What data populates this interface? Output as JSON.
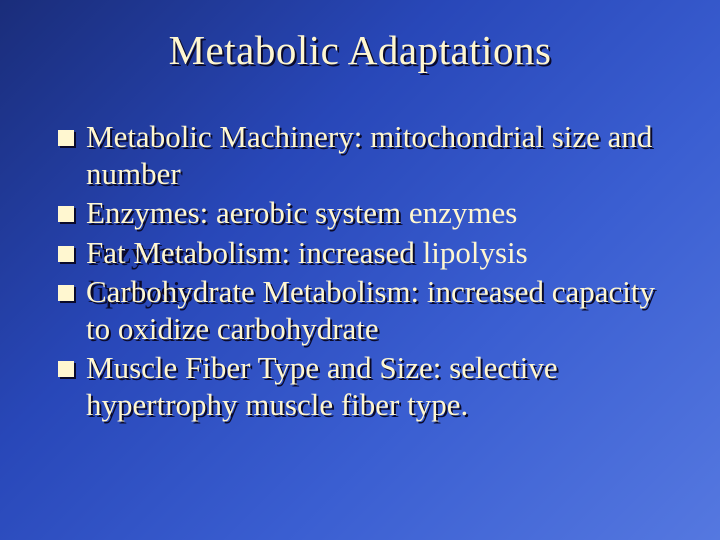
{
  "slide": {
    "title": "Metabolic Adaptations",
    "background_gradient": [
      "#1a2d7a",
      "#2847b8",
      "#3a5ed1",
      "#5578e0"
    ],
    "title_color": "#fff7d0",
    "title_shadow_color": "#0a0a2a",
    "title_fontsize": 41,
    "bullet_marker_color": "#fff7d0",
    "bullet_marker_shadow": "#0a0a2a",
    "bullet_marker_size": 16,
    "bullet_text_color": "#fff7d0",
    "bullet_text_shadow": "#0a0a2a",
    "bullet_fontsize": 31,
    "bullets": [
      "Metabolic Machinery: mitochondrial size and number",
      "Enzymes: aerobic system enzymes",
      "Fat Metabolism: increased lipolysis",
      "Carbohydrate Metabolism: increased capacity to oxidize carbohydrate",
      "Muscle Fiber Type and Size: selective hypertrophy muscle fiber type."
    ]
  }
}
